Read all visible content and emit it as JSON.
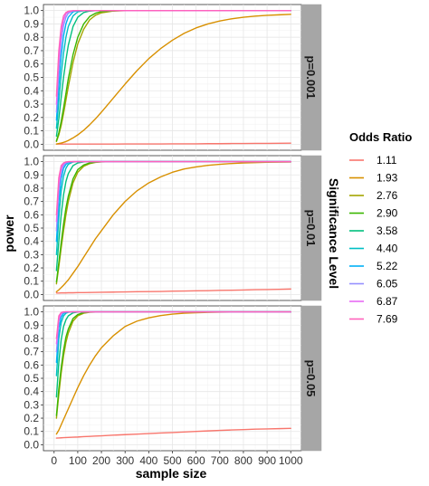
{
  "chart_data": {
    "type": "line",
    "xlabel": "sample size",
    "ylabel": "power",
    "facet_title": "Significance Level",
    "xlim": [
      0,
      1000
    ],
    "ylim": [
      0,
      1
    ],
    "x_ticks": [
      0,
      100,
      200,
      300,
      400,
      500,
      600,
      700,
      800,
      900,
      1000
    ],
    "y_ticks": [
      0.0,
      0.1,
      0.2,
      0.3,
      0.4,
      0.5,
      0.6,
      0.7,
      0.8,
      0.9,
      1.0
    ],
    "y_tick_labels": [
      "0.0",
      "0.1",
      "0.2",
      "0.3",
      "0.4",
      "0.5",
      "0.6",
      "0.7",
      "0.8",
      "0.9",
      "1.0"
    ],
    "grid": true,
    "legend": {
      "title": "Odds Ratio",
      "placement": "right",
      "entries": [
        "1.11",
        "1.93",
        "2.76",
        "2.90",
        "3.58",
        "4.40",
        "5.22",
        "6.05",
        "6.87",
        "7.69"
      ]
    },
    "series_colors": [
      "#F8766D",
      "#D89000",
      "#A3A500",
      "#39B600",
      "#00BF7D",
      "#00BFC4",
      "#00B0F6",
      "#9590FF",
      "#E76BF3",
      "#FF62BC"
    ],
    "x": [
      10,
      20,
      30,
      40,
      50,
      60,
      80,
      100,
      125,
      150,
      175,
      200,
      250,
      300,
      350,
      400,
      450,
      500,
      550,
      600,
      650,
      700,
      750,
      800,
      850,
      900,
      950,
      1000
    ],
    "panels": [
      {
        "label": "p=0.001",
        "series": [
          {
            "name": "1.11",
            "values": [
              0.001,
              0.001,
              0.001,
              0.001,
              0.001,
              0.001,
              0.001,
              0.001,
              0.001,
              0.001,
              0.001,
              0.001,
              0.001,
              0.002,
              0.002,
              0.002,
              0.002,
              0.003,
              0.003,
              0.003,
              0.004,
              0.004,
              0.005,
              0.005,
              0.006,
              0.006,
              0.007,
              0.008
            ]
          },
          {
            "name": "1.93",
            "values": [
              0.002,
              0.005,
              0.009,
              0.014,
              0.02,
              0.028,
              0.047,
              0.07,
              0.104,
              0.145,
              0.19,
              0.24,
              0.345,
              0.45,
              0.55,
              0.64,
              0.715,
              0.778,
              0.83,
              0.87,
              0.9,
              0.922,
              0.938,
              0.95,
              0.958,
              0.964,
              0.968,
              0.972
            ]
          },
          {
            "name": "2.76",
            "values": [
              0.02,
              0.07,
              0.14,
              0.23,
              0.33,
              0.43,
              0.61,
              0.75,
              0.86,
              0.93,
              0.965,
              0.983,
              0.996,
              0.999,
              1,
              1,
              1,
              1,
              1,
              1,
              1,
              1,
              1,
              1,
              1,
              1,
              1,
              1
            ]
          },
          {
            "name": "2.90",
            "values": [
              0.025,
              0.085,
              0.17,
              0.27,
              0.38,
              0.49,
              0.67,
              0.8,
              0.9,
              0.955,
              0.98,
              0.992,
              0.998,
              1,
              1,
              1,
              1,
              1,
              1,
              1,
              1,
              1,
              1,
              1,
              1,
              1,
              1,
              1
            ]
          },
          {
            "name": "3.58",
            "values": [
              0.06,
              0.19,
              0.35,
              0.5,
              0.63,
              0.74,
              0.88,
              0.95,
              0.985,
              0.996,
              0.999,
              1,
              1,
              1,
              1,
              1,
              1,
              1,
              1,
              1,
              1,
              1,
              1,
              1,
              1,
              1,
              1,
              1
            ]
          },
          {
            "name": "4.40",
            "values": [
              0.12,
              0.32,
              0.52,
              0.68,
              0.8,
              0.88,
              0.96,
              0.99,
              0.998,
              1,
              1,
              1,
              1,
              1,
              1,
              1,
              1,
              1,
              1,
              1,
              1,
              1,
              1,
              1,
              1,
              1,
              1,
              1
            ]
          },
          {
            "name": "5.22",
            "values": [
              0.18,
              0.44,
              0.66,
              0.81,
              0.9,
              0.95,
              0.99,
              0.998,
              1,
              1,
              1,
              1,
              1,
              1,
              1,
              1,
              1,
              1,
              1,
              1,
              1,
              1,
              1,
              1,
              1,
              1,
              1,
              1
            ]
          },
          {
            "name": "6.05",
            "values": [
              0.24,
              0.55,
              0.77,
              0.89,
              0.95,
              0.98,
              0.997,
              1,
              1,
              1,
              1,
              1,
              1,
              1,
              1,
              1,
              1,
              1,
              1,
              1,
              1,
              1,
              1,
              1,
              1,
              1,
              1,
              1
            ]
          },
          {
            "name": "6.87",
            "values": [
              0.3,
              0.63,
              0.84,
              0.93,
              0.975,
              0.99,
              0.999,
              1,
              1,
              1,
              1,
              1,
              1,
              1,
              1,
              1,
              1,
              1,
              1,
              1,
              1,
              1,
              1,
              1,
              1,
              1,
              1,
              1
            ]
          },
          {
            "name": "7.69",
            "values": [
              0.36,
              0.7,
              0.88,
              0.96,
              0.985,
              0.995,
              1,
              1,
              1,
              1,
              1,
              1,
              1,
              1,
              1,
              1,
              1,
              1,
              1,
              1,
              1,
              1,
              1,
              1,
              1,
              1,
              1,
              1
            ]
          }
        ]
      },
      {
        "label": "p=0.01",
        "series": [
          {
            "name": "1.11",
            "values": [
              0.011,
              0.011,
              0.012,
              0.012,
              0.012,
              0.013,
              0.013,
              0.014,
              0.014,
              0.015,
              0.016,
              0.017,
              0.018,
              0.019,
              0.021,
              0.022,
              0.023,
              0.025,
              0.026,
              0.028,
              0.029,
              0.031,
              0.032,
              0.034,
              0.036,
              0.037,
              0.039,
              0.041
            ]
          },
          {
            "name": "1.93",
            "values": [
              0.02,
              0.035,
              0.052,
              0.07,
              0.09,
              0.11,
              0.16,
              0.21,
              0.28,
              0.35,
              0.42,
              0.48,
              0.6,
              0.7,
              0.78,
              0.84,
              0.885,
              0.92,
              0.945,
              0.96,
              0.972,
              0.98,
              0.986,
              0.99,
              0.993,
              0.995,
              0.996,
              0.997
            ]
          },
          {
            "name": "2.76",
            "values": [
              0.08,
              0.21,
              0.35,
              0.48,
              0.6,
              0.7,
              0.84,
              0.92,
              0.965,
              0.985,
              0.994,
              0.998,
              1,
              1,
              1,
              1,
              1,
              1,
              1,
              1,
              1,
              1,
              1,
              1,
              1,
              1,
              1,
              1
            ]
          },
          {
            "name": "2.90",
            "values": [
              0.095,
              0.24,
              0.39,
              0.53,
              0.65,
              0.74,
              0.87,
              0.94,
              0.975,
              0.99,
              0.997,
              0.999,
              1,
              1,
              1,
              1,
              1,
              1,
              1,
              1,
              1,
              1,
              1,
              1,
              1,
              1,
              1,
              1
            ]
          },
          {
            "name": "3.58",
            "values": [
              0.18,
              0.4,
              0.6,
              0.75,
              0.85,
              0.91,
              0.97,
              0.99,
              0.998,
              1,
              1,
              1,
              1,
              1,
              1,
              1,
              1,
              1,
              1,
              1,
              1,
              1,
              1,
              1,
              1,
              1,
              1,
              1
            ]
          },
          {
            "name": "4.40",
            "values": [
              0.3,
              0.58,
              0.78,
              0.89,
              0.95,
              0.98,
              0.997,
              1,
              1,
              1,
              1,
              1,
              1,
              1,
              1,
              1,
              1,
              1,
              1,
              1,
              1,
              1,
              1,
              1,
              1,
              1,
              1,
              1
            ]
          },
          {
            "name": "5.22",
            "values": [
              0.4,
              0.7,
              0.87,
              0.95,
              0.98,
              0.993,
              0.999,
              1,
              1,
              1,
              1,
              1,
              1,
              1,
              1,
              1,
              1,
              1,
              1,
              1,
              1,
              1,
              1,
              1,
              1,
              1,
              1,
              1
            ]
          },
          {
            "name": "6.05",
            "values": [
              0.48,
              0.79,
              0.92,
              0.97,
              0.99,
              0.997,
              1,
              1,
              1,
              1,
              1,
              1,
              1,
              1,
              1,
              1,
              1,
              1,
              1,
              1,
              1,
              1,
              1,
              1,
              1,
              1,
              1,
              1
            ]
          },
          {
            "name": "6.87",
            "values": [
              0.55,
              0.84,
              0.95,
              0.985,
              0.996,
              0.999,
              1,
              1,
              1,
              1,
              1,
              1,
              1,
              1,
              1,
              1,
              1,
              1,
              1,
              1,
              1,
              1,
              1,
              1,
              1,
              1,
              1,
              1
            ]
          },
          {
            "name": "7.69",
            "values": [
              0.6,
              0.88,
              0.97,
              0.99,
              0.998,
              1,
              1,
              1,
              1,
              1,
              1,
              1,
              1,
              1,
              1,
              1,
              1,
              1,
              1,
              1,
              1,
              1,
              1,
              1,
              1,
              1,
              1,
              1
            ]
          }
        ]
      },
      {
        "label": "p=0.05",
        "series": [
          {
            "name": "1.11",
            "values": [
              0.05,
              0.051,
              0.052,
              0.053,
              0.054,
              0.055,
              0.057,
              0.058,
              0.061,
              0.063,
              0.065,
              0.067,
              0.072,
              0.076,
              0.08,
              0.084,
              0.088,
              0.092,
              0.096,
              0.1,
              0.104,
              0.108,
              0.111,
              0.114,
              0.117,
              0.119,
              0.121,
              0.123
            ]
          },
          {
            "name": "1.93",
            "values": [
              0.08,
              0.11,
              0.15,
              0.19,
              0.23,
              0.27,
              0.35,
              0.43,
              0.52,
              0.6,
              0.67,
              0.73,
              0.82,
              0.89,
              0.93,
              0.955,
              0.972,
              0.983,
              0.99,
              0.994,
              0.996,
              0.998,
              0.999,
              1,
              1,
              1,
              1,
              1
            ]
          },
          {
            "name": "2.76",
            "values": [
              0.2,
              0.38,
              0.54,
              0.67,
              0.77,
              0.84,
              0.93,
              0.97,
              0.99,
              0.997,
              0.999,
              1,
              1,
              1,
              1,
              1,
              1,
              1,
              1,
              1,
              1,
              1,
              1,
              1,
              1,
              1,
              1,
              1
            ]
          },
          {
            "name": "2.90",
            "values": [
              0.22,
              0.42,
              0.58,
              0.71,
              0.81,
              0.87,
              0.95,
              0.98,
              0.995,
              0.999,
              1,
              1,
              1,
              1,
              1,
              1,
              1,
              1,
              1,
              1,
              1,
              1,
              1,
              1,
              1,
              1,
              1,
              1
            ]
          },
          {
            "name": "3.58",
            "values": [
              0.36,
              0.62,
              0.79,
              0.89,
              0.94,
              0.97,
              0.993,
              0.999,
              1,
              1,
              1,
              1,
              1,
              1,
              1,
              1,
              1,
              1,
              1,
              1,
              1,
              1,
              1,
              1,
              1,
              1,
              1,
              1
            ]
          },
          {
            "name": "4.40",
            "values": [
              0.52,
              0.8,
              0.92,
              0.97,
              0.99,
              0.997,
              1,
              1,
              1,
              1,
              1,
              1,
              1,
              1,
              1,
              1,
              1,
              1,
              1,
              1,
              1,
              1,
              1,
              1,
              1,
              1,
              1,
              1
            ]
          },
          {
            "name": "5.22",
            "values": [
              0.62,
              0.88,
              0.96,
              0.99,
              0.997,
              0.999,
              1,
              1,
              1,
              1,
              1,
              1,
              1,
              1,
              1,
              1,
              1,
              1,
              1,
              1,
              1,
              1,
              1,
              1,
              1,
              1,
              1,
              1
            ]
          },
          {
            "name": "6.05",
            "values": [
              0.7,
              0.93,
              0.985,
              0.997,
              1,
              1,
              1,
              1,
              1,
              1,
              1,
              1,
              1,
              1,
              1,
              1,
              1,
              1,
              1,
              1,
              1,
              1,
              1,
              1,
              1,
              1,
              1,
              1
            ]
          },
          {
            "name": "6.87",
            "values": [
              0.76,
              0.95,
              0.99,
              0.998,
              1,
              1,
              1,
              1,
              1,
              1,
              1,
              1,
              1,
              1,
              1,
              1,
              1,
              1,
              1,
              1,
              1,
              1,
              1,
              1,
              1,
              1,
              1,
              1
            ]
          },
          {
            "name": "7.69",
            "values": [
              0.8,
              0.97,
              0.995,
              1,
              1,
              1,
              1,
              1,
              1,
              1,
              1,
              1,
              1,
              1,
              1,
              1,
              1,
              1,
              1,
              1,
              1,
              1,
              1,
              1,
              1,
              1,
              1,
              1
            ]
          }
        ]
      }
    ]
  }
}
